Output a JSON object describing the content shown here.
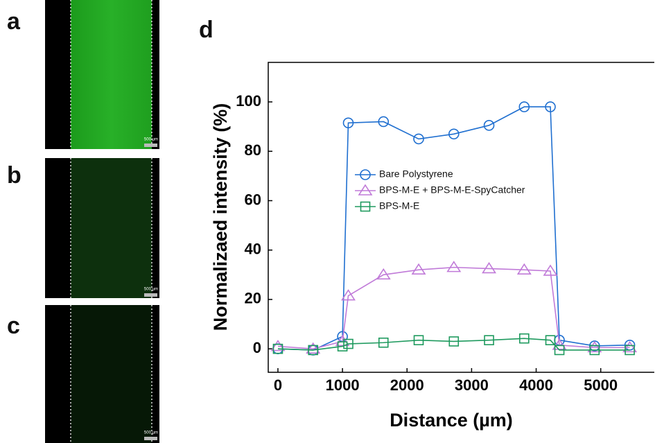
{
  "panels": [
    {
      "label": "a",
      "scale_bar": "500 µm"
    },
    {
      "label": "b",
      "scale_bar": "500 µm"
    },
    {
      "label": "c",
      "scale_bar": "500 µm"
    }
  ],
  "chart_label": "d",
  "chart_data": {
    "type": "line",
    "xlabel": "Distance (µm)",
    "ylabel": "Normalizaed intensity (%)",
    "x": [
      0,
      545,
      1000,
      1090,
      1635,
      2180,
      2725,
      3270,
      3815,
      4220,
      4360,
      4905,
      5450
    ],
    "series": [
      {
        "name": "Bare Polystyrene",
        "color": "#1f6fd0",
        "marker": "circle",
        "values": [
          0,
          -0.5,
          5,
          91.5,
          92,
          85,
          87,
          90.5,
          98,
          98,
          3.5,
          1.2,
          1.5
        ]
      },
      {
        "name": "BPS-M-E + BPS-M-E-SpyCatcher",
        "color": "#c07ad8",
        "marker": "triangle",
        "values": [
          1,
          0,
          3,
          21.5,
          30,
          32,
          33,
          32.5,
          32,
          31.5,
          1.5,
          0.5,
          0.5
        ]
      },
      {
        "name": "BPS-M-E",
        "color": "#1e9a5e",
        "marker": "square",
        "values": [
          0,
          -0.5,
          1,
          2,
          2.5,
          3.5,
          3,
          3.5,
          4.2,
          3.5,
          -0.5,
          -0.5,
          -0.5
        ]
      }
    ],
    "xlim": [
      -150,
      5830
    ],
    "xticks": [
      0,
      1000,
      2000,
      3000,
      4000,
      5000
    ],
    "ylim": [
      -9.5,
      116
    ],
    "yticks": [
      0,
      20,
      40,
      60,
      80,
      100
    ]
  }
}
